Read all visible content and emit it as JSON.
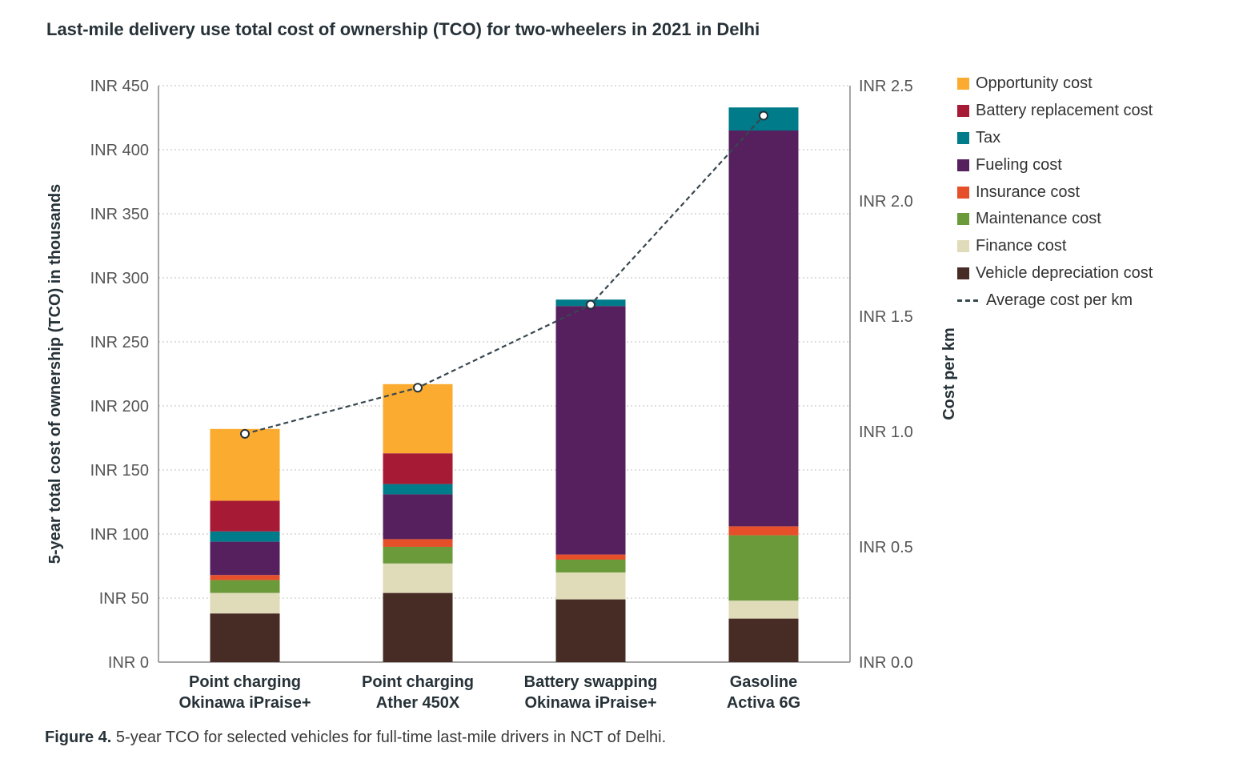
{
  "title": "Last-mile delivery use total cost of ownership (TCO) for two-wheelers in 2021 in Delhi",
  "caption": {
    "label": "Figure 4.",
    "text": " 5-year TCO for selected vehicles for full-time last-mile drivers in NCT of Delhi."
  },
  "chart_data": {
    "type": "bar",
    "stacked": true,
    "categories": [
      [
        "Point charging",
        "Okinawa iPraise+"
      ],
      [
        "Point charging",
        "Ather 450X"
      ],
      [
        "Battery swapping",
        "Okinawa iPraise+"
      ],
      [
        "Gasoline",
        "Activa 6G"
      ]
    ],
    "ylabel": "5-year total cost of ownership (TCO) in thousands",
    "y2label": "Cost per km",
    "ylim": [
      0,
      450
    ],
    "y2lim": [
      0,
      2.5
    ],
    "yticks": [
      "INR 0",
      "INR 50",
      "INR 100",
      "INR 150",
      "INR 200",
      "INR 250",
      "INR 300",
      "INR 350",
      "INR 400",
      "INR 450"
    ],
    "y2ticks": [
      "INR 0.0",
      "INR 0.5",
      "INR 1.0",
      "INR 1.5",
      "INR 2.0",
      "INR 2.5"
    ],
    "grid": true,
    "legend_position": "right",
    "series": [
      {
        "name": "Vehicle depreciation cost",
        "color": "#472c26",
        "values": [
          38,
          54,
          49,
          34
        ]
      },
      {
        "name": "Finance cost",
        "color": "#e0dbb9",
        "values": [
          16,
          23,
          21,
          14
        ]
      },
      {
        "name": "Maintenance cost",
        "color": "#6a9a3a",
        "values": [
          10,
          13,
          10,
          51
        ]
      },
      {
        "name": "Insurance cost",
        "color": "#e5502a",
        "values": [
          4,
          6,
          4,
          7
        ]
      },
      {
        "name": "Fueling cost",
        "color": "#56205f",
        "values": [
          26,
          35,
          194,
          309
        ]
      },
      {
        "name": "Tax",
        "color": "#007b8a",
        "values": [
          8,
          8,
          5,
          18
        ]
      },
      {
        "name": "Battery replacement cost",
        "color": "#a61a35",
        "values": [
          24,
          24,
          0,
          0
        ]
      },
      {
        "name": "Opportunity cost",
        "color": "#fbab2f",
        "values": [
          56,
          54,
          0,
          0
        ]
      }
    ],
    "line": {
      "name": "Average cost per km",
      "color": "#37474f",
      "axis": "right",
      "values": [
        0.99,
        1.19,
        1.55,
        2.37
      ]
    }
  }
}
